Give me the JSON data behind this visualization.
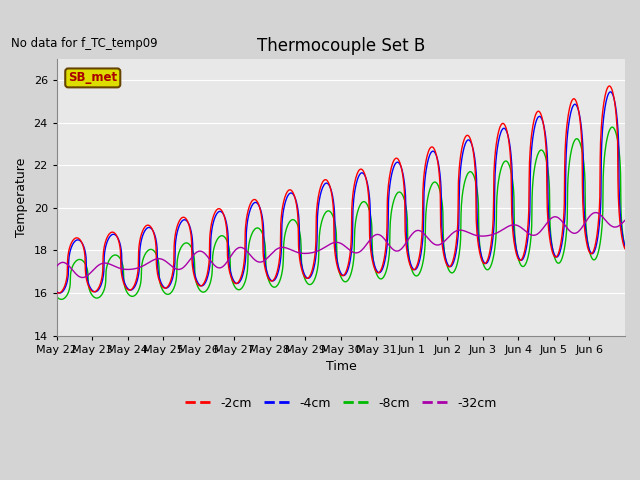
{
  "title": "Thermocouple Set B",
  "no_data_text": "No data for f_TC_temp09",
  "xlabel": "Time",
  "ylabel": "Temperature",
  "ylim": [
    14,
    27
  ],
  "yticks": [
    14,
    16,
    18,
    20,
    22,
    24,
    26
  ],
  "line_colors": {
    "m2cm": "#ff0000",
    "m4cm": "#0000ff",
    "m8cm": "#00bb00",
    "m32cm": "#aa00aa"
  },
  "legend_labels": [
    "-2cm",
    "-4cm",
    "-8cm",
    "-32cm"
  ],
  "sb_met_box_color": "#dddd00",
  "sb_met_text_color": "#aa0000",
  "tick_label_fontsize": 8,
  "title_fontsize": 12,
  "label_fontsize": 9,
  "n_days": 16,
  "day_labels": [
    "May 22",
    "May 23",
    "May 24",
    "May 25",
    "May 26",
    "May 27",
    "May 28",
    "May 29",
    "May 30",
    "May 31",
    "Jun 1",
    "Jun 2",
    "Jun 3",
    "Jun 4",
    "Jun 5",
    "Jun 6"
  ]
}
